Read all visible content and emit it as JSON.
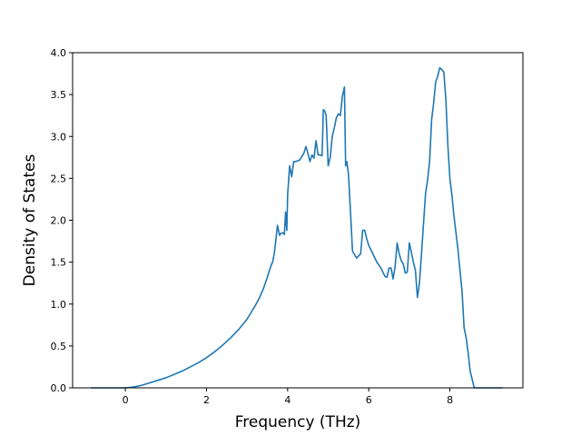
{
  "chart_data": {
    "type": "line",
    "title": "",
    "xlabel": "Frequency (THz)",
    "ylabel": "Density of States",
    "xlim": [
      -1.3,
      9.8
    ],
    "ylim": [
      0.0,
      4.0
    ],
    "xticks": [
      0,
      2,
      4,
      6,
      8
    ],
    "yticks": [
      0.0,
      0.5,
      1.0,
      1.5,
      2.0,
      2.5,
      3.0,
      3.5,
      4.0
    ],
    "ytick_labels": [
      "0.0",
      "0.5",
      "1.0",
      "1.5",
      "2.0",
      "2.5",
      "3.0",
      "3.5",
      "4.0"
    ],
    "grid": false,
    "legend": "none",
    "line_color": "#1f77b4",
    "series": [
      {
        "x": [
          -0.85,
          -0.5,
          -0.2,
          0.0,
          0.2,
          0.4,
          0.6,
          0.8,
          1.0,
          1.2,
          1.4,
          1.6,
          1.8,
          2.0,
          2.2,
          2.4,
          2.6,
          2.8,
          3.0,
          3.1,
          3.2,
          3.3,
          3.4,
          3.5,
          3.55,
          3.6,
          3.63,
          3.67,
          3.7,
          3.75,
          3.8,
          3.85,
          3.88,
          3.92,
          3.95,
          3.98,
          4.0,
          4.05,
          4.1,
          4.15,
          4.2,
          4.3,
          4.4,
          4.45,
          4.5,
          4.55,
          4.6,
          4.65,
          4.7,
          4.75,
          4.8,
          4.85,
          4.88,
          4.92,
          4.95,
          5.0,
          5.05,
          5.1,
          5.15,
          5.2,
          5.25,
          5.3,
          5.35,
          5.4,
          5.43,
          5.46,
          5.5,
          5.55,
          5.6,
          5.7,
          5.8,
          5.85,
          5.9,
          5.95,
          6.0,
          6.1,
          6.2,
          6.3,
          6.4,
          6.45,
          6.5,
          6.55,
          6.6,
          6.65,
          6.7,
          6.75,
          6.8,
          6.85,
          6.9,
          6.95,
          7.0,
          7.05,
          7.1,
          7.15,
          7.2,
          7.25,
          7.3,
          7.4,
          7.45,
          7.5,
          7.55,
          7.6,
          7.65,
          7.7,
          7.75,
          7.8,
          7.85,
          7.9,
          7.95,
          8.0,
          8.05,
          8.1,
          8.2,
          8.3,
          8.35,
          8.4,
          8.45,
          8.5,
          8.6,
          8.8,
          9.0,
          9.3
        ],
        "y": [
          0.0,
          0.0,
          0.0,
          0.0,
          0.01,
          0.03,
          0.06,
          0.09,
          0.12,
          0.16,
          0.2,
          0.25,
          0.3,
          0.36,
          0.43,
          0.51,
          0.6,
          0.7,
          0.82,
          0.9,
          0.98,
          1.07,
          1.18,
          1.32,
          1.4,
          1.47,
          1.5,
          1.6,
          1.72,
          1.94,
          1.82,
          1.85,
          1.85,
          1.83,
          2.1,
          1.88,
          2.3,
          2.65,
          2.52,
          2.7,
          2.7,
          2.72,
          2.8,
          2.88,
          2.8,
          2.7,
          2.78,
          2.74,
          2.95,
          2.78,
          2.78,
          2.77,
          3.32,
          3.3,
          3.25,
          2.65,
          2.75,
          3.0,
          3.1,
          3.22,
          3.27,
          3.25,
          3.48,
          3.59,
          2.65,
          2.7,
          2.55,
          2.1,
          1.63,
          1.55,
          1.6,
          1.88,
          1.88,
          1.78,
          1.7,
          1.6,
          1.5,
          1.43,
          1.33,
          1.32,
          1.43,
          1.43,
          1.3,
          1.45,
          1.73,
          1.6,
          1.52,
          1.48,
          1.37,
          1.38,
          1.73,
          1.62,
          1.5,
          1.4,
          1.08,
          1.25,
          1.6,
          2.32,
          2.48,
          2.7,
          3.2,
          3.4,
          3.65,
          3.72,
          3.82,
          3.8,
          3.77,
          3.45,
          2.9,
          2.5,
          2.3,
          2.05,
          1.65,
          1.15,
          0.72,
          0.6,
          0.42,
          0.2,
          0.0,
          0.0,
          0.0,
          0.0
        ]
      }
    ]
  }
}
